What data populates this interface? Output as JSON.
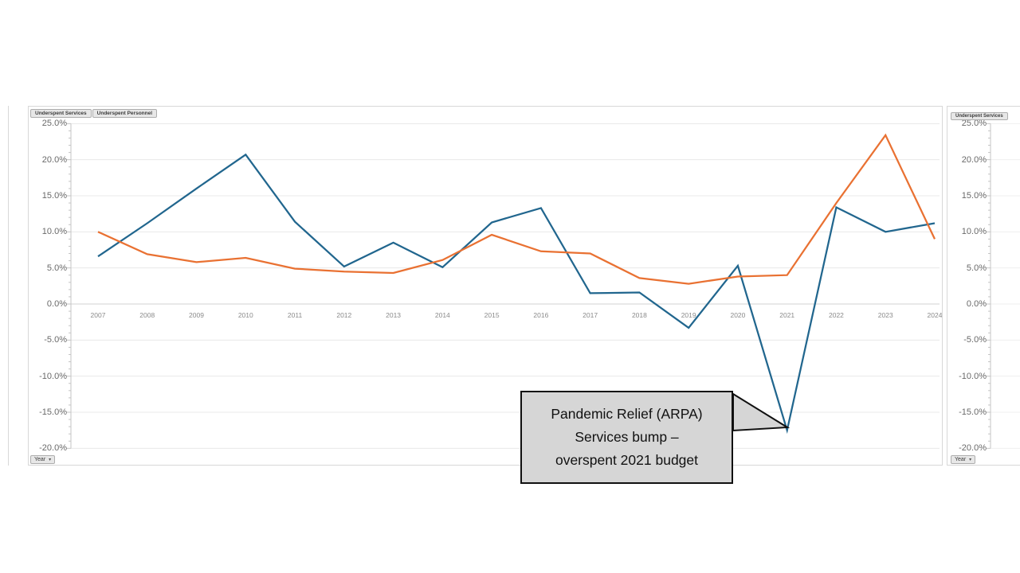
{
  "chart1": {
    "field_buttons": [
      {
        "label": "Underspent Services"
      },
      {
        "label": "Underspent Personnel"
      }
    ],
    "axis_button": {
      "label": "Year",
      "dropdown": "▾"
    }
  },
  "chart2": {
    "field_buttons": [
      {
        "label": "Underspent Services"
      }
    ],
    "axis_button": {
      "label": "Year",
      "dropdown": "▾"
    }
  },
  "callout": {
    "lines": [
      "Pandemic Relief (ARPA)",
      "Services bump –",
      "overspent 2021 budget"
    ],
    "fill": "#d6d6d6",
    "border": "#101010"
  },
  "chart_data": {
    "type": "line",
    "x": [
      2007,
      2008,
      2009,
      2010,
      2011,
      2012,
      2013,
      2014,
      2015,
      2016,
      2017,
      2018,
      2019,
      2020,
      2021,
      2022,
      2023,
      2024
    ],
    "series": [
      {
        "name": "Underspent Services",
        "color": "#21668E",
        "values": [
          6.6,
          11.2,
          16.0,
          20.7,
          11.4,
          5.2,
          8.5,
          5.1,
          11.3,
          13.3,
          1.5,
          1.6,
          -3.3,
          5.3,
          -17.5,
          13.4,
          10.0,
          11.2
        ]
      },
      {
        "name": "Underspent Personnel",
        "color": "#E97132",
        "values": [
          10.0,
          6.9,
          5.8,
          6.4,
          4.9,
          4.5,
          4.3,
          6.1,
          9.6,
          7.3,
          7.0,
          3.6,
          2.8,
          3.8,
          4.0,
          14.0,
          23.4,
          9.0
        ]
      }
    ],
    "title": "",
    "xlabel": "Year",
    "ylabel": "",
    "ylim": [
      -20,
      25
    ],
    "ytick_step": 5,
    "ytick_format": "0.0%",
    "grid": true,
    "legend_position": "none"
  },
  "colors": {
    "gridline": "#e8e8e8",
    "zero_axis": "#d0d0d0",
    "axis_tick": "#c4c4c4",
    "frame_border": "#d8d8d8",
    "button_bg": "#e7e7e7",
    "button_border": "#adadad"
  }
}
